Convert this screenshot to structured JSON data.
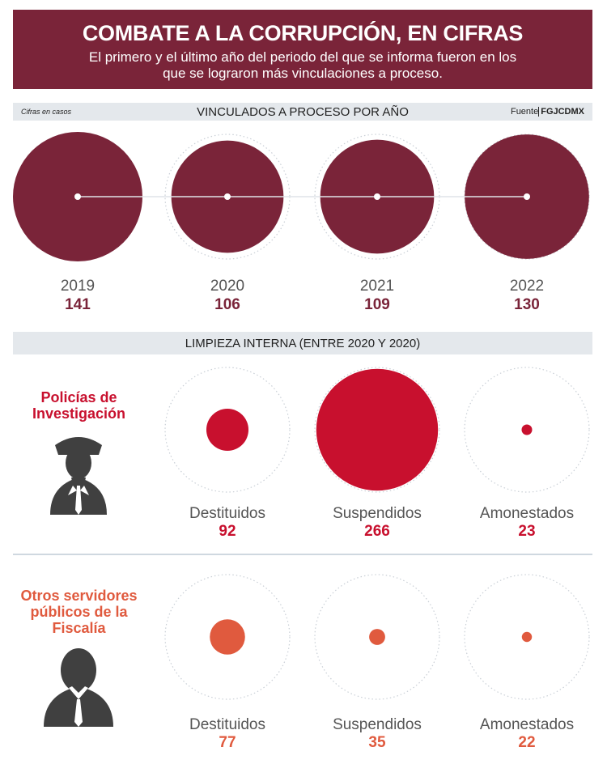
{
  "header": {
    "title": "COMBATE A LA CORRUPCIÓN, EN CIFRAS",
    "subtitle": "El primero y el último año del periodo del que se informa fueron en los que se lograron más vinculaciones a proceso."
  },
  "section1": {
    "note": "Cifras en casos",
    "title": "VINCULADOS A PROCESO POR AÑO",
    "source_label": "Fuente",
    "source": "FGJCDMX"
  },
  "section2": {
    "title": "LIMPIEZA INTERNA (ENTRE 2020 Y 2020)",
    "group1": "Policías de Investigación",
    "group2": "Otros servidores públicos de la Fiscalía"
  },
  "colors": {
    "header_bg": "#7a2439",
    "bar_bg": "#e4e8ec",
    "years_fill": "#7a2439",
    "police": "#c8102e",
    "others": "#e05a3e",
    "icon": "#404040"
  },
  "icons": [
    "police-officer-icon",
    "businessman-icon"
  ],
  "chart_data": [
    {
      "type": "bubble",
      "title": "VINCULADOS A PROCESO POR AÑO",
      "categories": [
        "2019",
        "2020",
        "2021",
        "2022"
      ],
      "values": [
        141,
        106,
        109,
        130
      ],
      "unit_note": "Cifras en casos"
    },
    {
      "type": "bubble",
      "title": "LIMPIEZA INTERNA (ENTRE 2020 Y 2020)",
      "categories": [
        "Destituidos",
        "Suspendidos",
        "Amonestados"
      ],
      "series": [
        {
          "name": "Policías de Investigación",
          "values": [
            92,
            266,
            23
          ]
        },
        {
          "name": "Otros servidores públicos de la Fiscalía",
          "values": [
            77,
            35,
            22
          ]
        }
      ]
    }
  ]
}
